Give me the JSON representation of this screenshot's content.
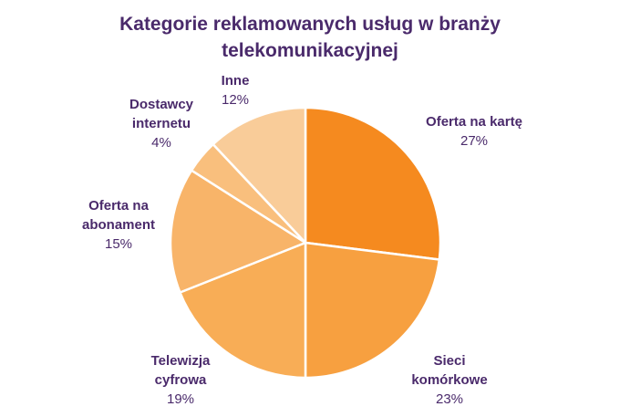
{
  "chart_data": {
    "type": "pie",
    "title": "Kategorie reklamowanych usług w branży telekomunikacyjnej",
    "title_lines": [
      "Kategorie reklamowanych usług w branży",
      "telekomunikacyjnej"
    ],
    "slices": [
      {
        "label": "Oferta na kartę",
        "label_lines": [
          "Oferta na kartę"
        ],
        "value": 27,
        "value_label": "27%",
        "color": "#f58a1f"
      },
      {
        "label": "Sieci komórkowe",
        "label_lines": [
          "Sieci",
          "komórkowe"
        ],
        "value": 23,
        "value_label": "23%",
        "color": "#f7a040"
      },
      {
        "label": "Telewizja cyfrowa",
        "label_lines": [
          "Telewizja",
          "cyfrowa"
        ],
        "value": 19,
        "value_label": "19%",
        "color": "#f8ad56"
      },
      {
        "label": "Oferta na abonament",
        "label_lines": [
          "Oferta na",
          "abonament"
        ],
        "value": 15,
        "value_label": "15%",
        "color": "#f8b469"
      },
      {
        "label": "Dostawcy internetu",
        "label_lines": [
          "Dostawcy",
          "internetu"
        ],
        "value": 4,
        "value_label": "4%",
        "color": "#f9bf7d"
      },
      {
        "label": "Inne",
        "label_lines": [
          "Inne"
        ],
        "value": 12,
        "value_label": "12%",
        "color": "#f9cc99"
      }
    ],
    "start_angle_deg": 0,
    "direction": "clockwise",
    "slice_border_color": "#ffffff",
    "text_color": "#4a2a6b"
  }
}
